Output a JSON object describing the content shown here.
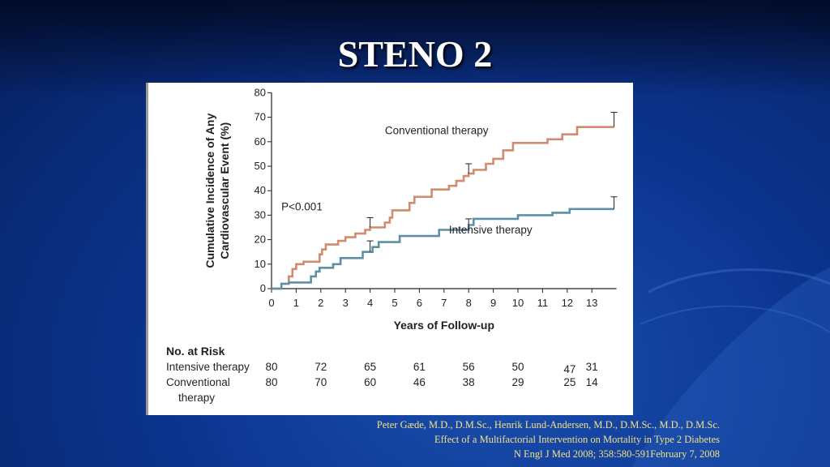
{
  "slide": {
    "title": "STENO 2",
    "citation": [
      "Peter Gæde, M.D., D.M.Sc., Henrik Lund-Andersen, M.D., D.M.Sc., M.D., D.M.Sc.",
      "Effect of a Multifactorial Intervention on Mortality in Type 2 Diabetes",
      "N Engl J Med 2008; 358:580-591February 7, 2008"
    ]
  },
  "colors": {
    "conventional": "#d18b6d",
    "intensive": "#5f8fa6",
    "text": "#231f20",
    "background": "#0c3590"
  },
  "chart_data": {
    "type": "line",
    "title": "",
    "xlabel": "Years of Follow-up",
    "ylabel": "Cumulative Incidence of Any Cardiovascular Event (%)",
    "ylabel_lines": [
      "Cumulative Incidence of Any",
      "Cardiovascular Event (%)"
    ],
    "xlim": [
      0,
      14
    ],
    "ylim": [
      0,
      80
    ],
    "xticks": [
      0,
      1,
      2,
      3,
      4,
      5,
      6,
      7,
      8,
      9,
      10,
      11,
      12,
      13
    ],
    "yticks": [
      0,
      10,
      20,
      30,
      40,
      50,
      60,
      70,
      80
    ],
    "annotation": "P<0.001",
    "series": [
      {
        "name": "Conventional therapy",
        "key": "conventional",
        "points": [
          [
            0,
            0
          ],
          [
            0.4,
            0
          ],
          [
            0.4,
            2
          ],
          [
            0.7,
            2
          ],
          [
            0.7,
            5
          ],
          [
            0.85,
            5
          ],
          [
            0.85,
            8
          ],
          [
            1.0,
            8
          ],
          [
            1.0,
            10
          ],
          [
            1.3,
            10
          ],
          [
            1.3,
            11
          ],
          [
            1.95,
            11
          ],
          [
            1.95,
            14
          ],
          [
            2.05,
            14
          ],
          [
            2.05,
            16
          ],
          [
            2.2,
            16
          ],
          [
            2.2,
            18
          ],
          [
            2.7,
            18
          ],
          [
            2.7,
            19.5
          ],
          [
            3.0,
            19.5
          ],
          [
            3.0,
            21
          ],
          [
            3.4,
            21
          ],
          [
            3.4,
            22.5
          ],
          [
            3.8,
            22.5
          ],
          [
            3.8,
            24
          ],
          [
            4.0,
            24
          ],
          [
            4.0,
            25
          ],
          [
            4.6,
            25
          ],
          [
            4.6,
            27
          ],
          [
            4.8,
            27
          ],
          [
            4.8,
            29
          ],
          [
            4.9,
            29
          ],
          [
            4.9,
            32
          ],
          [
            5.6,
            32
          ],
          [
            5.6,
            35
          ],
          [
            5.8,
            35
          ],
          [
            5.8,
            37.5
          ],
          [
            6.5,
            37.5
          ],
          [
            6.5,
            40.5
          ],
          [
            7.2,
            40.5
          ],
          [
            7.2,
            42
          ],
          [
            7.5,
            42
          ],
          [
            7.5,
            44
          ],
          [
            7.8,
            44
          ],
          [
            7.8,
            46
          ],
          [
            8.0,
            46
          ],
          [
            8.0,
            47
          ],
          [
            8.2,
            47
          ],
          [
            8.2,
            48.5
          ],
          [
            8.7,
            48.5
          ],
          [
            8.7,
            51
          ],
          [
            9.0,
            51
          ],
          [
            9.0,
            53
          ],
          [
            9.4,
            53
          ],
          [
            9.4,
            56.5
          ],
          [
            9.8,
            56.5
          ],
          [
            9.8,
            59.5
          ],
          [
            11.2,
            59.5
          ],
          [
            11.2,
            61
          ],
          [
            11.8,
            61
          ],
          [
            11.8,
            63
          ],
          [
            12.4,
            63
          ],
          [
            12.4,
            66
          ],
          [
            13.9,
            66
          ]
        ],
        "end_error": [
          66,
          72
        ]
      },
      {
        "name": "Intensive therapy",
        "key": "intensive",
        "points": [
          [
            0,
            0
          ],
          [
            0.4,
            0
          ],
          [
            0.4,
            2
          ],
          [
            0.7,
            2
          ],
          [
            0.7,
            2.5
          ],
          [
            1.6,
            2.5
          ],
          [
            1.6,
            5
          ],
          [
            1.8,
            5
          ],
          [
            1.8,
            7
          ],
          [
            1.95,
            7
          ],
          [
            1.95,
            8.5
          ],
          [
            2.5,
            8.5
          ],
          [
            2.5,
            10
          ],
          [
            2.8,
            10
          ],
          [
            2.8,
            12.5
          ],
          [
            3.7,
            12.5
          ],
          [
            3.7,
            15
          ],
          [
            4.1,
            15
          ],
          [
            4.1,
            17
          ],
          [
            4.35,
            17
          ],
          [
            4.35,
            19
          ],
          [
            5.2,
            19
          ],
          [
            5.2,
            21.5
          ],
          [
            6.8,
            21.5
          ],
          [
            6.8,
            24
          ],
          [
            8.0,
            24
          ],
          [
            8.0,
            26
          ],
          [
            8.2,
            26
          ],
          [
            8.2,
            28.5
          ],
          [
            10.0,
            28.5
          ],
          [
            10.0,
            30
          ],
          [
            11.4,
            30
          ],
          [
            11.4,
            31
          ],
          [
            12.1,
            31
          ],
          [
            12.1,
            32.5
          ],
          [
            13.9,
            32.5
          ]
        ],
        "end_error": [
          32.5,
          37.5
        ]
      }
    ],
    "interval_bars": [
      {
        "series": "conventional",
        "x": 4.0,
        "y_low": 25,
        "y_high": 29
      },
      {
        "series": "conventional",
        "x": 8.0,
        "y_low": 47,
        "y_high": 51
      },
      {
        "series": "intensive",
        "x": 4.0,
        "y_low": 15,
        "y_high": 19.5
      },
      {
        "series": "intensive",
        "x": 8.0,
        "y_low": 25,
        "y_high": 28.5
      }
    ],
    "risk_table": {
      "header": "No. at Risk",
      "columns_x": [
        0,
        2,
        4,
        6,
        8,
        10,
        12.1,
        13
      ],
      "rows": [
        {
          "label": [
            "Intensive therapy"
          ],
          "values": [
            "80",
            "72",
            "65",
            "61",
            "56",
            "50",
            "47",
            "31"
          ]
        },
        {
          "label": [
            "Conventional",
            "therapy"
          ],
          "values": [
            "80",
            "70",
            "60",
            "46",
            "38",
            "29",
            "25",
            "14"
          ]
        }
      ]
    }
  }
}
